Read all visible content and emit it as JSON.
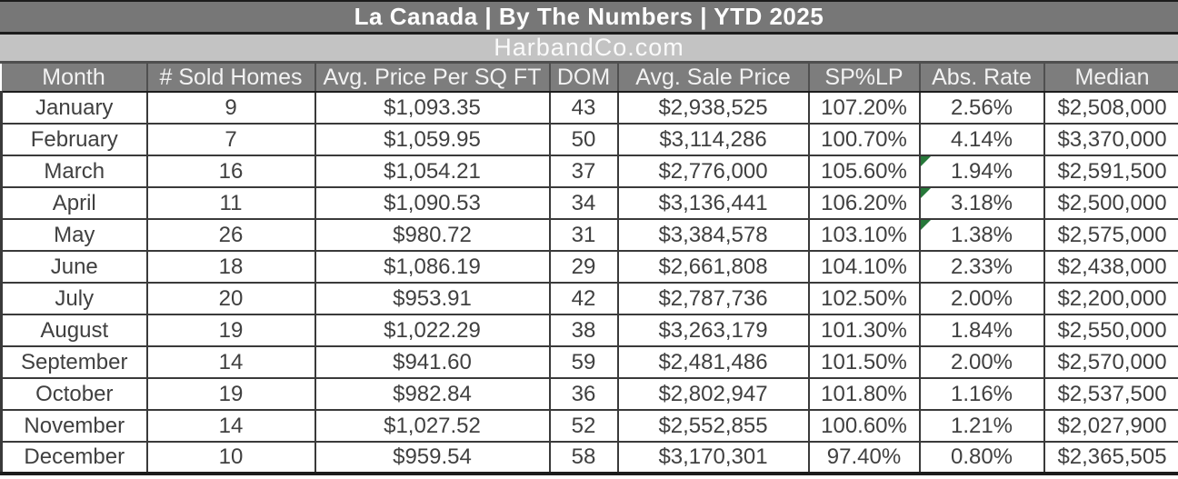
{
  "title_bar": {
    "text": "La Canada |  By The Numbers  |  YTD 2025"
  },
  "subtitle_bar": {
    "text": "HarbandCo.com"
  },
  "table": {
    "columns": [
      "Month",
      "# Sold Homes",
      "Avg. Price Per SQ FT",
      "DOM",
      "Avg. Sale Price",
      "SP%LP",
      "Abs. Rate",
      "Median"
    ],
    "rows": [
      {
        "cells": [
          "January",
          "9",
          "$1,093.35",
          "43",
          "$2,938,525",
          "107.20%",
          "2.56%",
          "$2,508,000"
        ],
        "comment_flag": false
      },
      {
        "cells": [
          "February",
          "7",
          "$1,059.95",
          "50",
          "$3,114,286",
          "100.70%",
          "4.14%",
          "$3,370,000"
        ],
        "comment_flag": false
      },
      {
        "cells": [
          "March",
          "16",
          "$1,054.21",
          "37",
          "$2,776,000",
          "105.60%",
          "1.94%",
          "$2,591,500"
        ],
        "comment_flag": true
      },
      {
        "cells": [
          "April",
          "11",
          "$1,090.53",
          "34",
          "$3,136,441",
          "106.20%",
          "3.18%",
          "$2,500,000"
        ],
        "comment_flag": true
      },
      {
        "cells": [
          "May",
          "26",
          "$980.72",
          "31",
          "$3,384,578",
          "103.10%",
          "1.38%",
          "$2,575,000"
        ],
        "comment_flag": true
      },
      {
        "cells": [
          "June",
          "18",
          "$1,086.19",
          "29",
          "$2,661,808",
          "104.10%",
          "2.33%",
          "$2,438,000"
        ],
        "comment_flag": false
      },
      {
        "cells": [
          "July",
          "20",
          "$953.91",
          "42",
          "$2,787,736",
          "102.50%",
          "2.00%",
          "$2,200,000"
        ],
        "comment_flag": false
      },
      {
        "cells": [
          "August",
          "19",
          "$1,022.29",
          "38",
          "$3,263,179",
          "101.30%",
          "1.84%",
          "$2,550,000"
        ],
        "comment_flag": false
      },
      {
        "cells": [
          "September",
          "14",
          "$941.60",
          "59",
          "$2,481,486",
          "101.50%",
          "2.00%",
          "$2,570,000"
        ],
        "comment_flag": false
      },
      {
        "cells": [
          "October",
          "19",
          "$982.84",
          "36",
          "$2,802,947",
          "101.80%",
          "1.16%",
          "$2,537,500"
        ],
        "comment_flag": false
      },
      {
        "cells": [
          "November",
          "14",
          "$1,027.52",
          "52",
          "$2,552,855",
          "100.60%",
          "1.21%",
          "$2,027,900"
        ],
        "comment_flag": false
      },
      {
        "cells": [
          "December",
          "10",
          "$959.54",
          "58",
          "$3,170,301",
          "97.40%",
          "0.80%",
          "$2,365,505"
        ],
        "comment_flag": false
      }
    ]
  },
  "chart_data": {
    "type": "table",
    "title": "La Canada | By The Numbers | YTD 2025",
    "subtitle": "HarbandCo.com",
    "categories": [
      "January",
      "February",
      "March",
      "April",
      "May",
      "June",
      "July",
      "August",
      "September",
      "October",
      "November",
      "December"
    ],
    "series": [
      {
        "name": "# Sold Homes",
        "values": [
          9,
          7,
          16,
          11,
          26,
          18,
          20,
          19,
          14,
          19,
          14,
          10
        ]
      },
      {
        "name": "Avg. Price Per SQ FT",
        "values": [
          1093.35,
          1059.95,
          1054.21,
          1090.53,
          980.72,
          1086.19,
          953.91,
          1022.29,
          941.6,
          982.84,
          1027.52,
          959.54
        ]
      },
      {
        "name": "DOM",
        "values": [
          43,
          50,
          37,
          34,
          31,
          29,
          42,
          38,
          59,
          36,
          52,
          58
        ]
      },
      {
        "name": "Avg. Sale Price",
        "values": [
          2938525,
          3114286,
          2776000,
          3136441,
          3384578,
          2661808,
          2787736,
          3263179,
          2481486,
          2802947,
          2552855,
          3170301
        ]
      },
      {
        "name": "SP%LP",
        "values": [
          107.2,
          100.7,
          105.6,
          106.2,
          103.1,
          104.1,
          102.5,
          101.3,
          101.5,
          101.8,
          100.6,
          97.4
        ]
      },
      {
        "name": "Abs. Rate",
        "values": [
          2.56,
          4.14,
          1.94,
          3.18,
          1.38,
          2.33,
          2.0,
          1.84,
          2.0,
          1.16,
          1.21,
          0.8
        ]
      },
      {
        "name": "Median",
        "values": [
          2508000,
          3370000,
          2591500,
          2500000,
          2575000,
          2438000,
          2200000,
          2550000,
          2570000,
          2537500,
          2027900,
          2365505
        ]
      }
    ]
  },
  "colors": {
    "title_bar_bg": "#777777",
    "subtitle_bar_bg": "#c3c3c3",
    "header_bg": "#7d7d7d",
    "row_bg": "#ffffff",
    "grid_border": "#3a3a3a",
    "heavy_border": "#1c1c1c",
    "title_text": "#ffffff",
    "subtitle_text": "#fafafa",
    "header_text": "#f2f2f2",
    "cell_text": "#404040",
    "comment_flag_green": "#27783a"
  }
}
